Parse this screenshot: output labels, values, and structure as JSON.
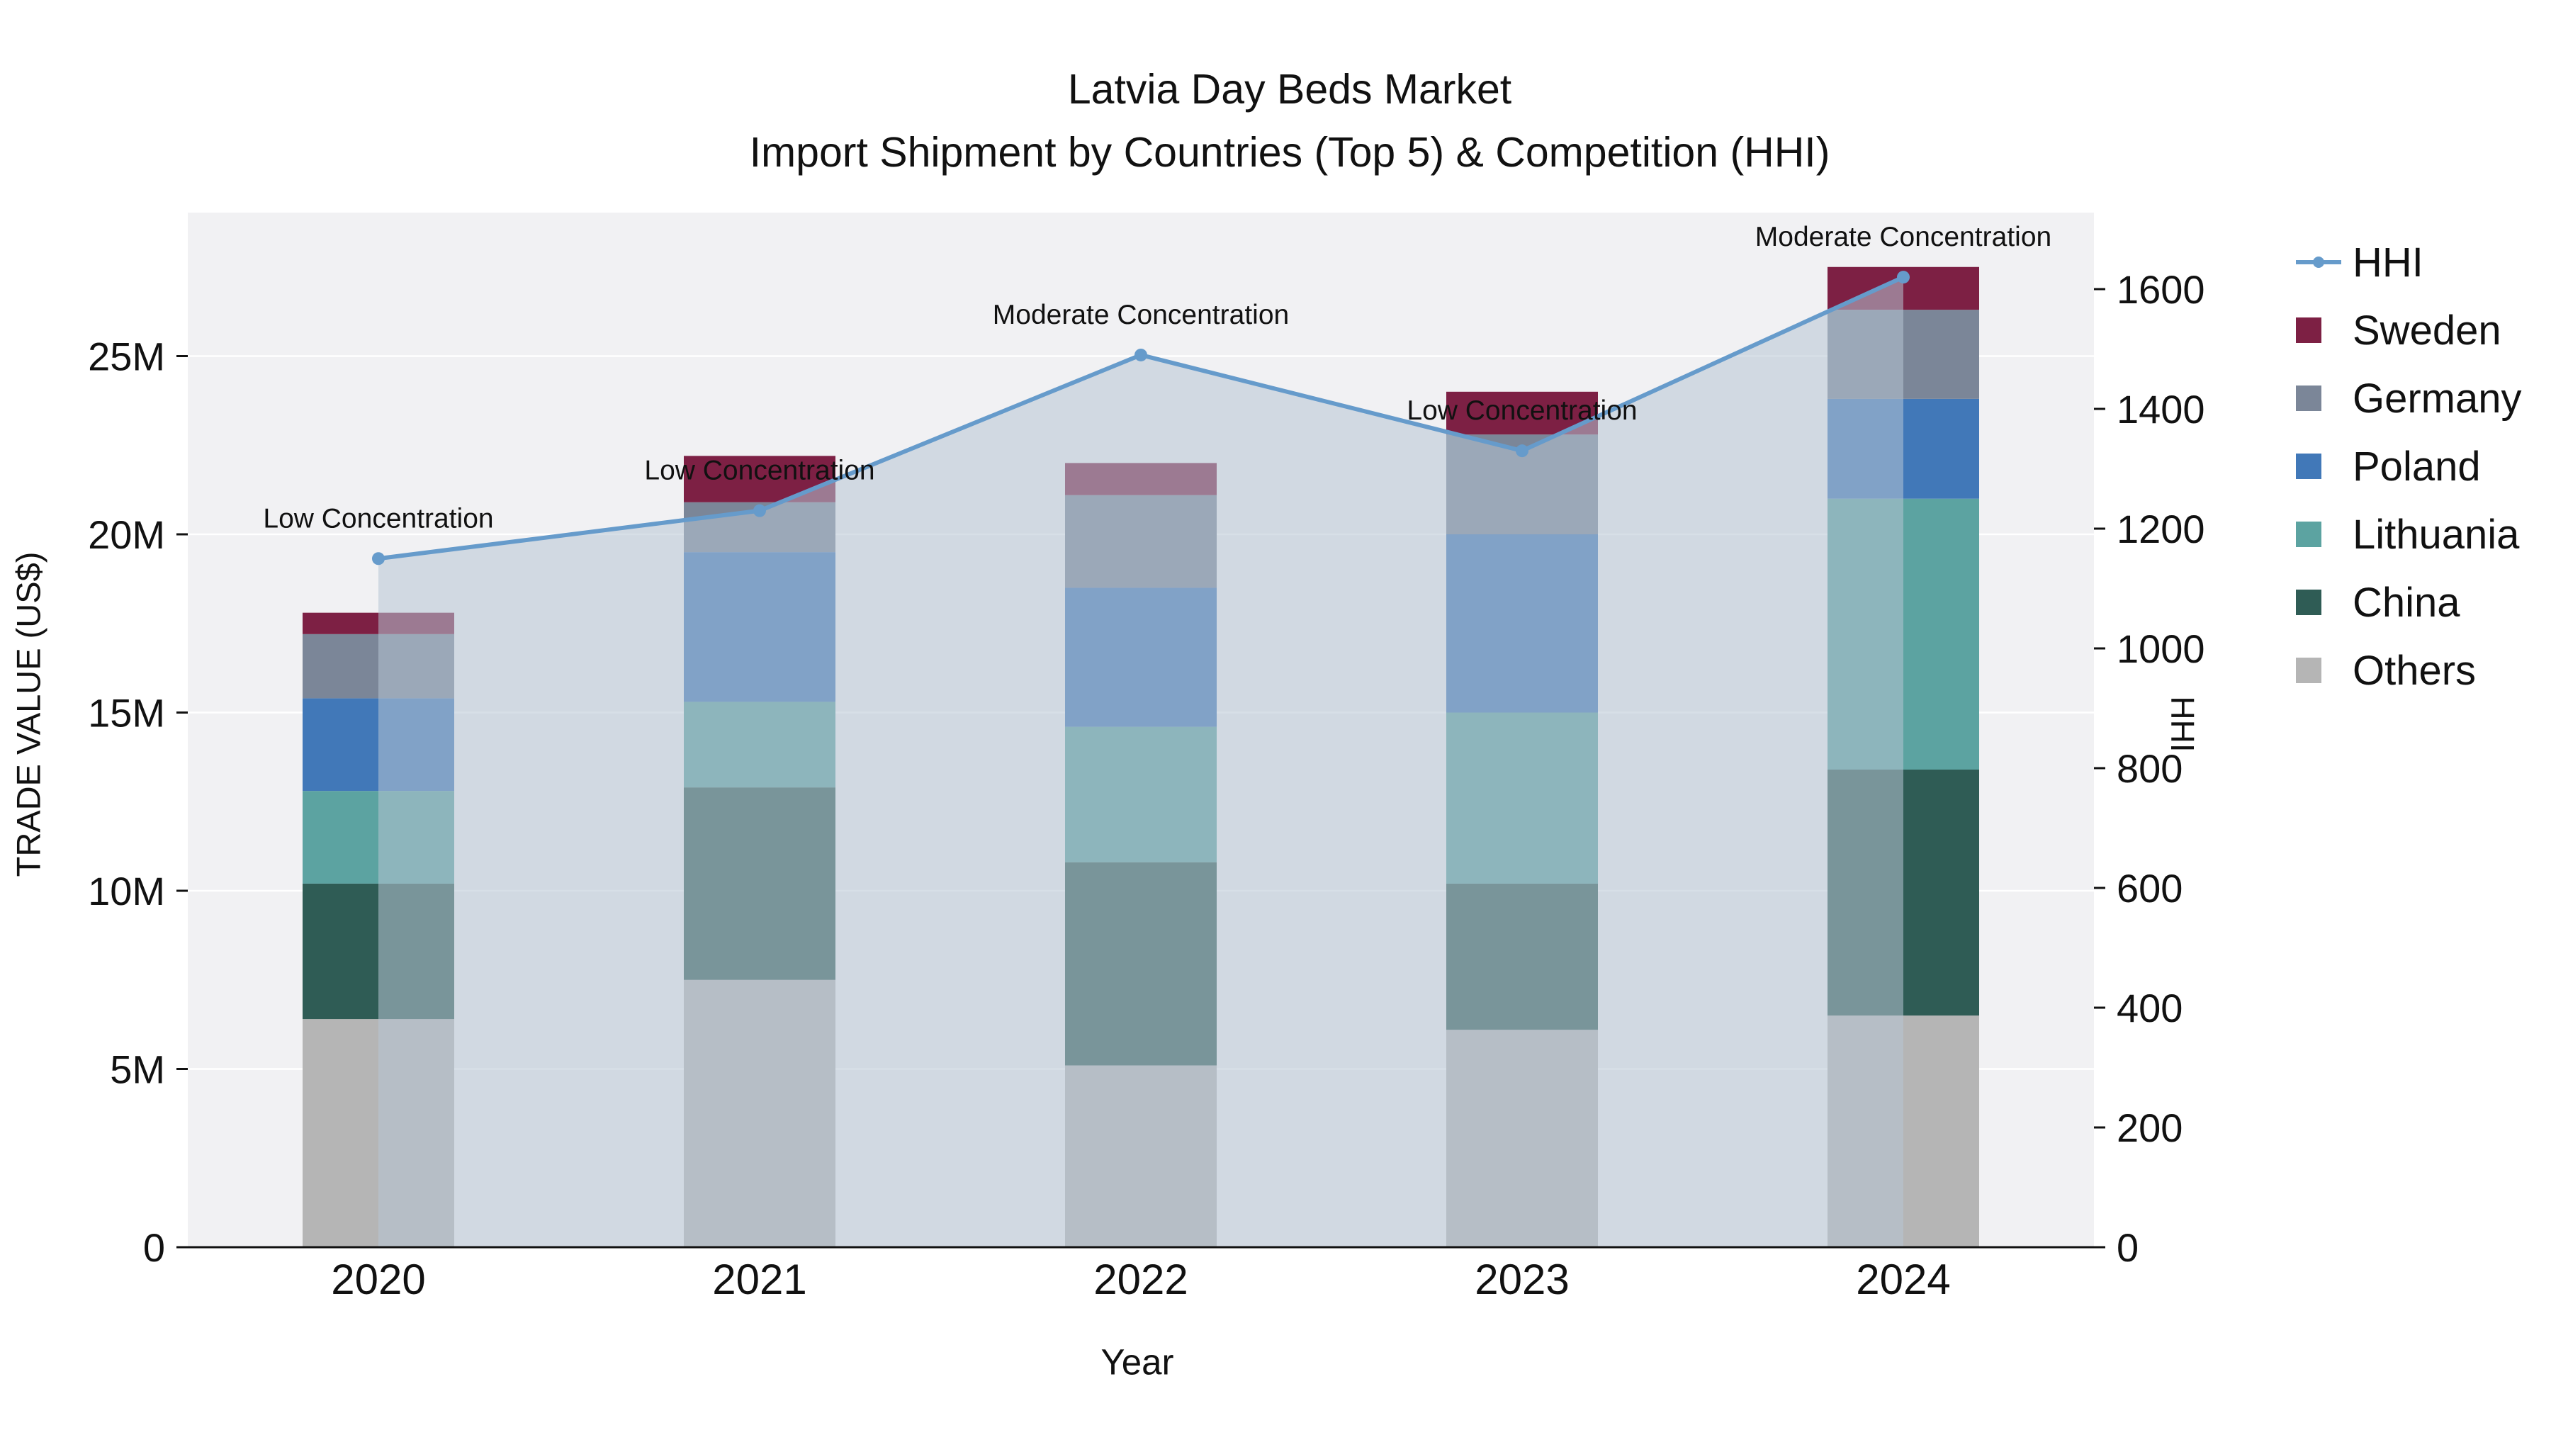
{
  "chart_data": {
    "type": "stacked-bar+line",
    "title_line1": "Latvia Day Beds Market",
    "title_line2": "Import Shipment by Countries (Top 5) & Competition (HHI)",
    "xlabel": "Year",
    "ylabel_left": "TRADE VALUE (US$)",
    "ylabel_right": "HHI",
    "categories": [
      "2020",
      "2021",
      "2022",
      "2023",
      "2024"
    ],
    "units_left": "millions US$",
    "left_axis": {
      "ticks": [
        "0",
        "5M",
        "10M",
        "15M",
        "20M",
        "25M"
      ],
      "tick_values": [
        0,
        5,
        10,
        15,
        20,
        25
      ]
    },
    "right_axis": {
      "ticks": [
        0,
        200,
        400,
        600,
        800,
        1000,
        1200,
        1400,
        1600
      ]
    },
    "series": [
      {
        "name": "Others",
        "color": "#b5b5b5",
        "values": [
          6.4,
          7.5,
          5.1,
          6.1,
          6.5
        ]
      },
      {
        "name": "China",
        "color": "#2f5c55",
        "values": [
          3.8,
          5.4,
          5.7,
          4.1,
          6.9
        ]
      },
      {
        "name": "Lithuania",
        "color": "#5ca3a1",
        "values": [
          2.6,
          2.4,
          3.8,
          4.8,
          7.6
        ]
      },
      {
        "name": "Poland",
        "color": "#4178b8",
        "values": [
          2.6,
          4.2,
          3.9,
          5.0,
          2.8
        ]
      },
      {
        "name": "Germany",
        "color": "#7b8698",
        "values": [
          1.8,
          1.4,
          2.6,
          2.8,
          2.5
        ]
      },
      {
        "name": "Sweden",
        "color": "#7d2044",
        "values": [
          0.6,
          1.3,
          0.9,
          1.2,
          1.2
        ]
      }
    ],
    "totals": [
      17.8,
      22.2,
      22.0,
      24.0,
      27.5
    ],
    "hhi": {
      "name": "HHI",
      "color": "#669bcb",
      "values": [
        1150,
        1230,
        1490,
        1330,
        1620
      ],
      "annotations": [
        "Low Concentration",
        "Low Concentration",
        "Moderate Concentration",
        "Low Concentration",
        "Moderate Concentration"
      ]
    },
    "legend": [
      "HHI",
      "Sweden",
      "Germany",
      "Poland",
      "Lithuania",
      "China",
      "Others"
    ],
    "style": {
      "plot_bg": "#f1f1f3",
      "grid_color": "#ffffff",
      "area_fill": "rgba(183,196,212,0.55)",
      "axis_color": "#111111",
      "text_color": "#111111"
    }
  }
}
